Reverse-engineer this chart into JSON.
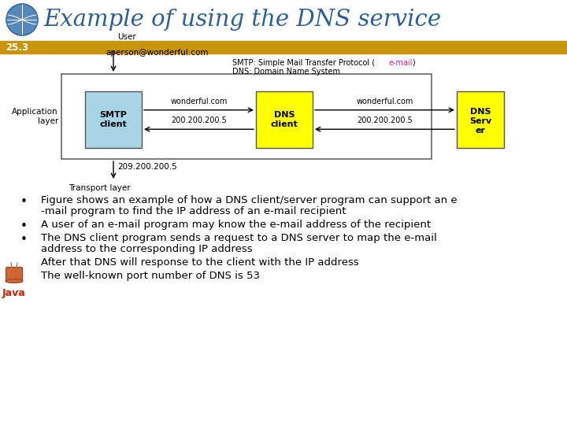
{
  "title": "Example of using the DNS service",
  "title_color": "#2E6096",
  "section_label": "25.3",
  "section_bg": "#C8940A",
  "section_text_color": "white",
  "background_color": "#FFFFFF",
  "smtp_box_color": "#A8D4E8",
  "dns_client_color": "#FFFF00",
  "dns_server_color": "#FFFF00",
  "bullet_points": [
    "Figure shows an example of how a DNS client/server program can support an e\n    -mail program to find the IP address of an e-mail recipient",
    "A user of an e-mail program may know the e-mail address of the recipient",
    "The DNS client program sends a request to a DNS server to map the e-mail\n    address to the corresponding IP address",
    "After that DNS will response to the client with the IP address",
    "The well-known port number of DNS is 53"
  ],
  "bullet_text_color": "#000000",
  "bullet_font_size": 9.5,
  "java_color": "#CC2200"
}
